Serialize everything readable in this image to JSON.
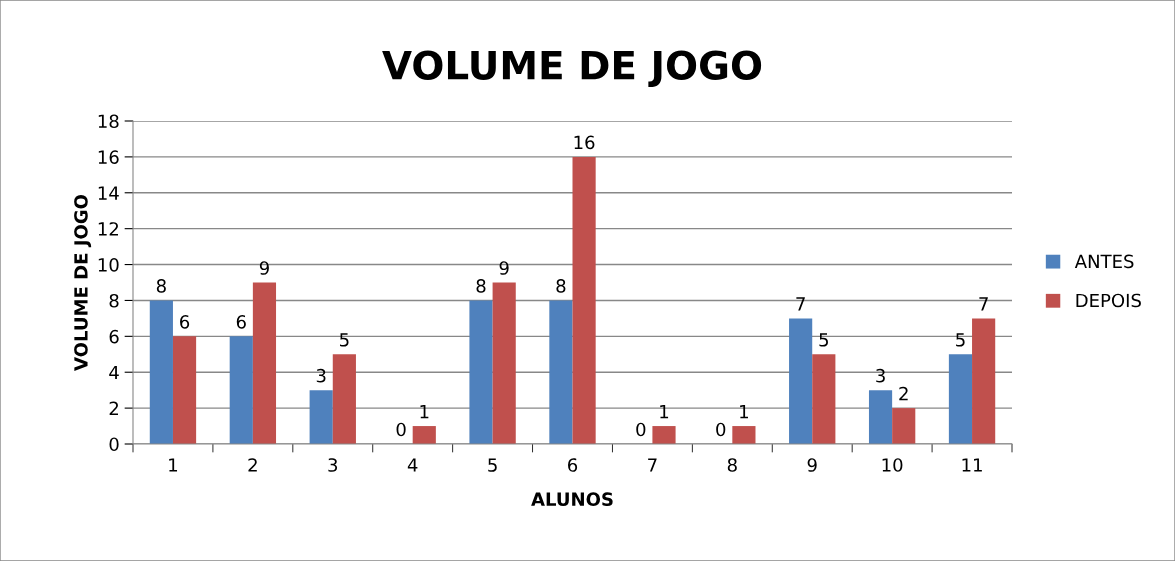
{
  "chart_data": {
    "type": "bar",
    "title": "VOLUME DE JOGO",
    "xlabel": "ALUNOS",
    "ylabel": "VOLUME DE JOGO",
    "categories": [
      "1",
      "2",
      "3",
      "4",
      "5",
      "6",
      "7",
      "8",
      "9",
      "10",
      "11"
    ],
    "series": [
      {
        "name": "ANTES",
        "color": "#4f81bd",
        "values": [
          8,
          6,
          3,
          0,
          8,
          8,
          0,
          0,
          7,
          3,
          5
        ]
      },
      {
        "name": "DEPOIS",
        "color": "#c0504d",
        "values": [
          6,
          9,
          5,
          1,
          9,
          16,
          1,
          1,
          5,
          2,
          7
        ]
      }
    ],
    "ylim": [
      0,
      18
    ],
    "yticks": [
      0,
      2,
      4,
      6,
      8,
      10,
      12,
      14,
      16,
      18
    ],
    "grid": "y",
    "legend": "right",
    "data_labels": true
  }
}
